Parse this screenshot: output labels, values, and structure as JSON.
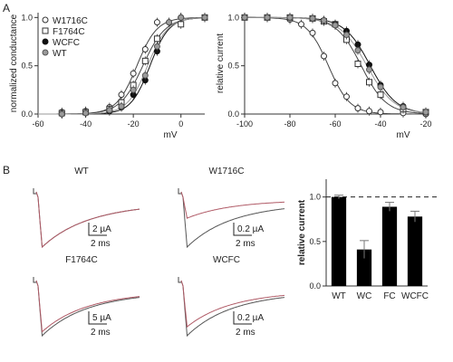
{
  "panels": {
    "a": "A",
    "b": "B"
  },
  "chart_data": [
    {
      "type": "line",
      "xlabel": "mV",
      "ylabel": "normalized conductance",
      "xlim": [
        -60,
        10
      ],
      "ylim": [
        0,
        1.05
      ],
      "xticks": [
        -60,
        -40,
        -20,
        0
      ],
      "yticks": [
        0.0,
        0.5,
        1.0
      ],
      "ytick_labels": [
        "0.0",
        "0.5",
        "1.0"
      ],
      "legend_position": "top-left",
      "series": [
        {
          "name": "W1716C",
          "marker": "open-circle",
          "color": "#444444",
          "x": [
            -50,
            -40,
            -30,
            -25,
            -20,
            -15,
            -10,
            0,
            10
          ],
          "y": [
            0.02,
            0.03,
            0.07,
            0.2,
            0.42,
            0.67,
            0.95,
            1.0,
            1.0
          ]
        },
        {
          "name": "F1764C",
          "marker": "open-square",
          "color": "#444444",
          "x": [
            -50,
            -40,
            -30,
            -25,
            -20,
            -15,
            -10,
            0,
            10
          ],
          "y": [
            0.01,
            0.02,
            0.05,
            0.12,
            0.3,
            0.55,
            0.78,
            0.93,
            1.0
          ]
        },
        {
          "name": "WCFC",
          "marker": "filled-circle",
          "color": "#111111",
          "x": [
            -50,
            -40,
            -30,
            -25,
            -20,
            -15,
            -10,
            -5,
            0,
            10
          ],
          "y": [
            0.0,
            0.01,
            0.03,
            0.07,
            0.2,
            0.35,
            0.65,
            0.95,
            1.0,
            1.0
          ]
        },
        {
          "name": "WT",
          "marker": "grey-circle",
          "color": "#999999",
          "x": [
            -50,
            -40,
            -30,
            -25,
            -20,
            -15,
            -10,
            -5,
            0,
            10
          ],
          "y": [
            0.0,
            0.01,
            0.04,
            0.08,
            0.25,
            0.4,
            0.7,
            0.95,
            1.0,
            1.0
          ]
        }
      ]
    },
    {
      "type": "line",
      "xlabel": "mV",
      "ylabel": "relative current",
      "xlim": [
        -100,
        -20
      ],
      "ylim": [
        0,
        1.05
      ],
      "xticks": [
        -100,
        -80,
        -60,
        -40,
        -20
      ],
      "yticks": [
        0.0,
        0.5,
        1.0
      ],
      "ytick_labels": [
        "0.0",
        "0.5",
        "1.0"
      ],
      "series": [
        {
          "name": "W1716C",
          "marker": "open-circle",
          "color": "#444444",
          "x": [
            -100,
            -90,
            -80,
            -75,
            -70,
            -65,
            -60,
            -55,
            -50,
            -45,
            -40,
            -30,
            -20
          ],
          "y": [
            1.0,
            1.0,
            0.98,
            0.93,
            0.84,
            0.6,
            0.32,
            0.18,
            0.06,
            0.03,
            0.02,
            0.01,
            0.0
          ]
        },
        {
          "name": "F1764C",
          "marker": "open-square",
          "color": "#444444",
          "x": [
            -100,
            -90,
            -80,
            -70,
            -65,
            -60,
            -55,
            -50,
            -45,
            -40,
            -30,
            -20
          ],
          "y": [
            1.0,
            1.0,
            1.0,
            0.99,
            0.96,
            0.93,
            0.77,
            0.52,
            0.33,
            0.2,
            0.05,
            0.02
          ]
        },
        {
          "name": "WCFC",
          "marker": "filled-circle",
          "color": "#111111",
          "x": [
            -100,
            -90,
            -80,
            -70,
            -65,
            -60,
            -55,
            -50,
            -45,
            -40,
            -30,
            -20
          ],
          "y": [
            1.0,
            1.0,
            1.0,
            0.99,
            0.97,
            0.93,
            0.86,
            0.72,
            0.51,
            0.3,
            0.08,
            0.02
          ]
        },
        {
          "name": "WT",
          "marker": "grey-circle",
          "color": "#999999",
          "x": [
            -100,
            -90,
            -80,
            -70,
            -65,
            -60,
            -55,
            -50,
            -45,
            -40,
            -30,
            -20
          ],
          "y": [
            1.0,
            1.0,
            1.0,
            0.99,
            0.97,
            0.92,
            0.82,
            0.66,
            0.46,
            0.28,
            0.07,
            0.02
          ]
        }
      ]
    },
    {
      "type": "bar",
      "ylabel": "relative current",
      "categories": [
        "WT",
        "WC",
        "FC",
        "WCFC"
      ],
      "values": [
        1.0,
        0.41,
        0.89,
        0.78
      ],
      "errors": [
        0.02,
        0.1,
        0.05,
        0.06
      ],
      "ylim": [
        0,
        1.2
      ],
      "yticks": [
        0.0,
        0.5,
        1.0
      ],
      "ytick_labels": [
        "0.0",
        "0.5",
        "1.0"
      ],
      "reference_line": 1.0,
      "bar_color": "#000000"
    }
  ],
  "traces": [
    {
      "label": "WT",
      "scale_current": "2 µA",
      "scale_time": "2 ms",
      "peak_gray": 1.0,
      "peak_red": 1.0,
      "tau": 0.42
    },
    {
      "label": "W1716C",
      "scale_current": "0.2 µA",
      "scale_time": "2 ms",
      "peak_gray": 1.0,
      "peak_red": 0.42,
      "tau": 0.4
    },
    {
      "label": "F1764C",
      "scale_current": "5 µA",
      "scale_time": "2 ms",
      "peak_gray": 1.0,
      "peak_red": 0.92,
      "tau": 0.4
    },
    {
      "label": "WCFC",
      "scale_current": "0.2 µA",
      "scale_time": "2 ms",
      "peak_gray": 1.0,
      "peak_red": 0.82,
      "tau": 0.4
    }
  ],
  "colors": {
    "trace_gray": "#555555",
    "trace_red": "#b05a66",
    "axis": "#333333"
  }
}
